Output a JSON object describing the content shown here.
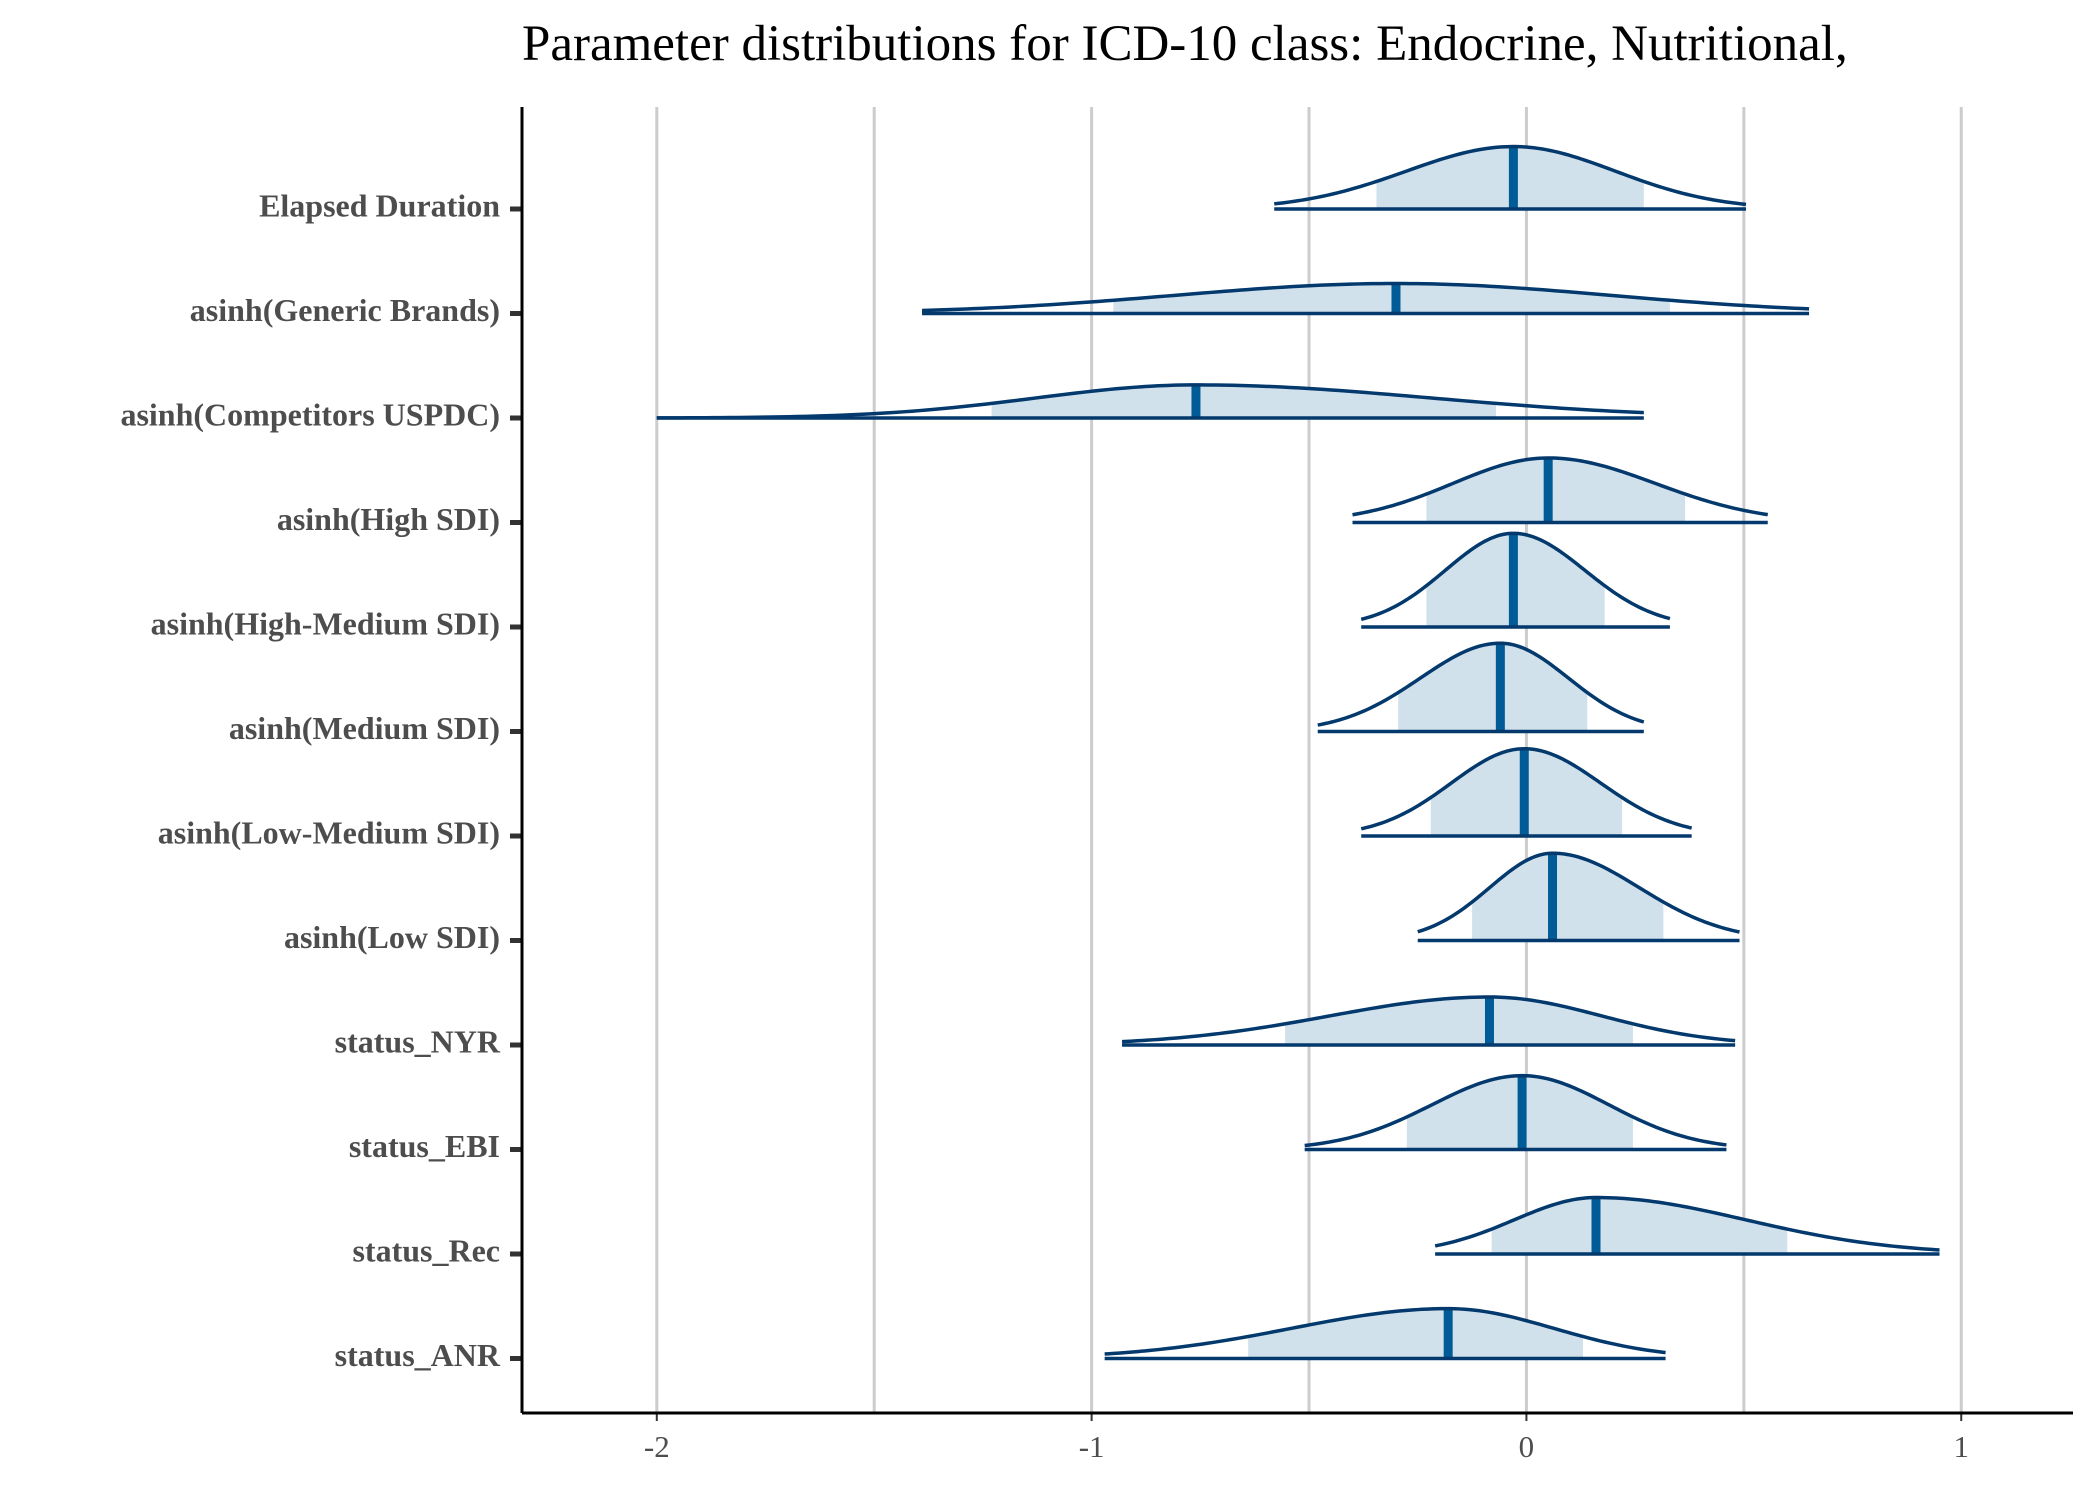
{
  "chart_data": {
    "type": "ridge",
    "title": "Parameter distributions for ICD-10 class: Endocrine, Nutritional,",
    "xlim": [
      -2.31,
      1.257
    ],
    "xticks": [
      -2,
      -1,
      0,
      1
    ],
    "xgrid": [
      -2,
      -1.5,
      -1,
      -0.5,
      0,
      0.5,
      1
    ],
    "fill_color": "#d1e1ec",
    "line_color": "#03396c",
    "median_color": "#005b96",
    "parameters": [
      {
        "label": "Elapsed Duration",
        "low": -0.58,
        "q_low": -0.345,
        "median": -0.03,
        "q_high": 0.27,
        "high": 0.505
      },
      {
        "label": "asinh(Generic Brands)",
        "low": -1.39,
        "q_low": -0.95,
        "median": -0.3,
        "q_high": 0.33,
        "high": 0.65
      },
      {
        "label": "asinh(Competitors USPDC)",
        "low": -2.0,
        "q_low": -1.23,
        "median": -0.76,
        "q_high": -0.07,
        "high": 0.27
      },
      {
        "label": "asinh(High SDI)",
        "low": -0.4,
        "q_low": -0.23,
        "median": 0.05,
        "q_high": 0.365,
        "high": 0.555
      },
      {
        "label": "asinh(High-Medium SDI)",
        "low": -0.38,
        "q_low": -0.23,
        "median": -0.03,
        "q_high": 0.18,
        "high": 0.33
      },
      {
        "label": "asinh(Medium SDI)",
        "low": -0.48,
        "q_low": -0.295,
        "median": -0.06,
        "q_high": 0.14,
        "high": 0.27
      },
      {
        "label": "asinh(Low-Medium SDI)",
        "low": -0.38,
        "q_low": -0.22,
        "median": -0.005,
        "q_high": 0.22,
        "high": 0.38
      },
      {
        "label": "asinh(Low SDI)",
        "low": -0.25,
        "q_low": -0.125,
        "median": 0.06,
        "q_high": 0.315,
        "high": 0.49
      },
      {
        "label": "status_NYR",
        "low": -0.93,
        "q_low": -0.555,
        "median": -0.085,
        "q_high": 0.245,
        "high": 0.48
      },
      {
        "label": "status_EBI",
        "low": -0.51,
        "q_low": -0.275,
        "median": -0.01,
        "q_high": 0.245,
        "high": 0.46
      },
      {
        "label": "status_Rec",
        "low": -0.21,
        "q_low": -0.08,
        "median": 0.16,
        "q_high": 0.6,
        "high": 0.95
      },
      {
        "label": "status_ANR",
        "low": -0.97,
        "q_low": -0.64,
        "median": -0.18,
        "q_high": 0.13,
        "high": 0.32
      }
    ]
  }
}
